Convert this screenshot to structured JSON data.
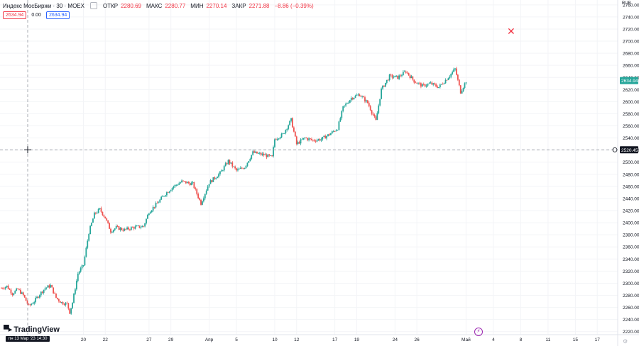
{
  "legend": {
    "symbol": "Индекс МосБиржи · 30 · MOEX",
    "open_label": "ОТКР",
    "open": "2280.69",
    "high_label": "МАКС",
    "high": "2280.77",
    "low_label": "МИН",
    "low": "2270.14",
    "close_label": "ЗАКР",
    "close": "2271.88",
    "change": "−8.86 (−0.39%)"
  },
  "chips": {
    "bid": "2634.94",
    "spread": "0.00",
    "ask": "2634.94"
  },
  "currency": "RUB",
  "branding": "TradingView",
  "crosshair": {
    "time_label": "пн 13 Мар '23   14:30",
    "price_label": "2520.45"
  },
  "last_price_label": "2634.94",
  "colors": {
    "up": "#26a69a",
    "down": "#ef5350",
    "last": "#26a69a"
  },
  "chart_data": {
    "type": "candlestick",
    "title": "",
    "yaxis": {
      "ticks": [
        2220,
        2240,
        2260,
        2280,
        2300,
        2320,
        2340,
        2360,
        2380,
        2400,
        2420,
        2440,
        2460,
        2480,
        2500,
        2520,
        2540,
        2560,
        2580,
        2600,
        2620,
        2640,
        2660,
        2680,
        2700,
        2720,
        2740,
        2760
      ],
      "ylim": [
        2215,
        2768
      ]
    },
    "xaxis": {
      "ticks": [
        "20",
        "22",
        "27",
        "29",
        "Апр",
        "5",
        "10",
        "12",
        "17",
        "19",
        "24",
        "26",
        "Май",
        "4",
        "8",
        "11",
        "15",
        "17"
      ],
      "tick_index": [
        30,
        38,
        54,
        62,
        76,
        86,
        100,
        108,
        122,
        130,
        144,
        152,
        170,
        180,
        190,
        200,
        210,
        218
      ],
      "range": [
        0,
        226
      ]
    },
    "close_path": [
      [
        0,
        2292
      ],
      [
        2,
        2295
      ],
      [
        4,
        2283
      ],
      [
        6,
        2290
      ],
      [
        8,
        2280
      ],
      [
        10,
        2262
      ],
      [
        12,
        2270
      ],
      [
        14,
        2282
      ],
      [
        16,
        2292
      ],
      [
        18,
        2296
      ],
      [
        20,
        2276
      ],
      [
        22,
        2268
      ],
      [
        24,
        2266
      ],
      [
        25,
        2252
      ],
      [
        26,
        2268
      ],
      [
        28,
        2316
      ],
      [
        30,
        2330
      ],
      [
        32,
        2384
      ],
      [
        34,
        2414
      ],
      [
        36,
        2422
      ],
      [
        38,
        2408
      ],
      [
        40,
        2386
      ],
      [
        42,
        2392
      ],
      [
        45,
        2388
      ],
      [
        48,
        2392
      ],
      [
        52,
        2394
      ],
      [
        54,
        2418
      ],
      [
        57,
        2432
      ],
      [
        60,
        2448
      ],
      [
        63,
        2460
      ],
      [
        66,
        2468
      ],
      [
        70,
        2464
      ],
      [
        73,
        2432
      ],
      [
        76,
        2466
      ],
      [
        80,
        2482
      ],
      [
        83,
        2502
      ],
      [
        86,
        2486
      ],
      [
        89,
        2492
      ],
      [
        92,
        2516
      ],
      [
        96,
        2512
      ],
      [
        99,
        2508
      ],
      [
        100,
        2538
      ],
      [
        103,
        2546
      ],
      [
        106,
        2570
      ],
      [
        108,
        2530
      ],
      [
        111,
        2540
      ],
      [
        114,
        2536
      ],
      [
        117,
        2538
      ],
      [
        120,
        2546
      ],
      [
        123,
        2556
      ],
      [
        125,
        2590
      ],
      [
        128,
        2606
      ],
      [
        131,
        2612
      ],
      [
        134,
        2598
      ],
      [
        137,
        2568
      ],
      [
        139,
        2620
      ],
      [
        142,
        2642
      ],
      [
        145,
        2640
      ],
      [
        148,
        2650
      ],
      [
        151,
        2634
      ],
      [
        154,
        2626
      ],
      [
        157,
        2630
      ],
      [
        160,
        2624
      ],
      [
        163,
        2638
      ],
      [
        166,
        2654
      ],
      [
        168,
        2616
      ],
      [
        170,
        2634
      ]
    ],
    "last": 2634.94,
    "markers": [
      {
        "type": "execution",
        "x_index": 180,
        "y": 2742
      }
    ]
  }
}
